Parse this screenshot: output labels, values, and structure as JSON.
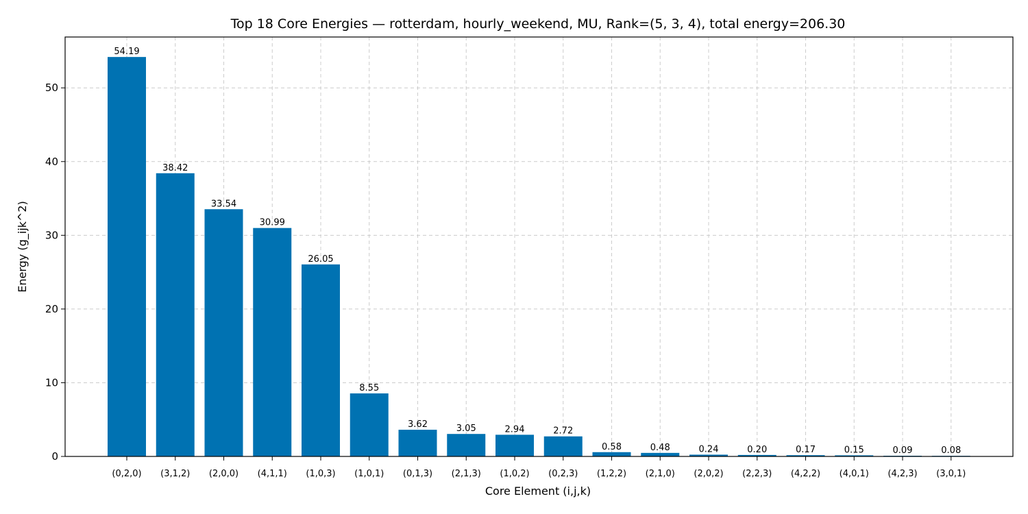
{
  "chart_data": {
    "type": "bar",
    "title": "Top 18 Core Energies — rotterdam, hourly_weekend, MU, Rank=(5, 3, 4), total energy=206.30",
    "xlabel": "Core Element (i,j,k)",
    "ylabel": "Energy (g_ijk^2)",
    "categories": [
      "(0,2,0)",
      "(3,1,2)",
      "(2,0,0)",
      "(4,1,1)",
      "(1,0,3)",
      "(1,0,1)",
      "(0,1,3)",
      "(2,1,3)",
      "(1,0,2)",
      "(0,2,3)",
      "(1,2,2)",
      "(2,1,0)",
      "(2,0,2)",
      "(2,2,3)",
      "(4,2,2)",
      "(4,0,1)",
      "(4,2,3)",
      "(3,0,1)"
    ],
    "values": [
      54.19,
      38.42,
      33.54,
      30.99,
      26.05,
      8.55,
      3.62,
      3.05,
      2.94,
      2.72,
      0.58,
      0.48,
      0.24,
      0.2,
      0.17,
      0.15,
      0.09,
      0.08
    ],
    "data_labels": [
      "54.19",
      "38.42",
      "33.54",
      "30.99",
      "26.05",
      "8.55",
      "3.62",
      "3.05",
      "2.94",
      "2.72",
      "0.58",
      "0.48",
      "0.24",
      "0.20",
      "0.17",
      "0.15",
      "0.09",
      "0.08"
    ],
    "ylim": [
      0,
      56.9
    ],
    "yticks": [
      0,
      10,
      20,
      30,
      40,
      50
    ],
    "grid": true,
    "legend": "none",
    "bar_color": "#0072b2"
  }
}
